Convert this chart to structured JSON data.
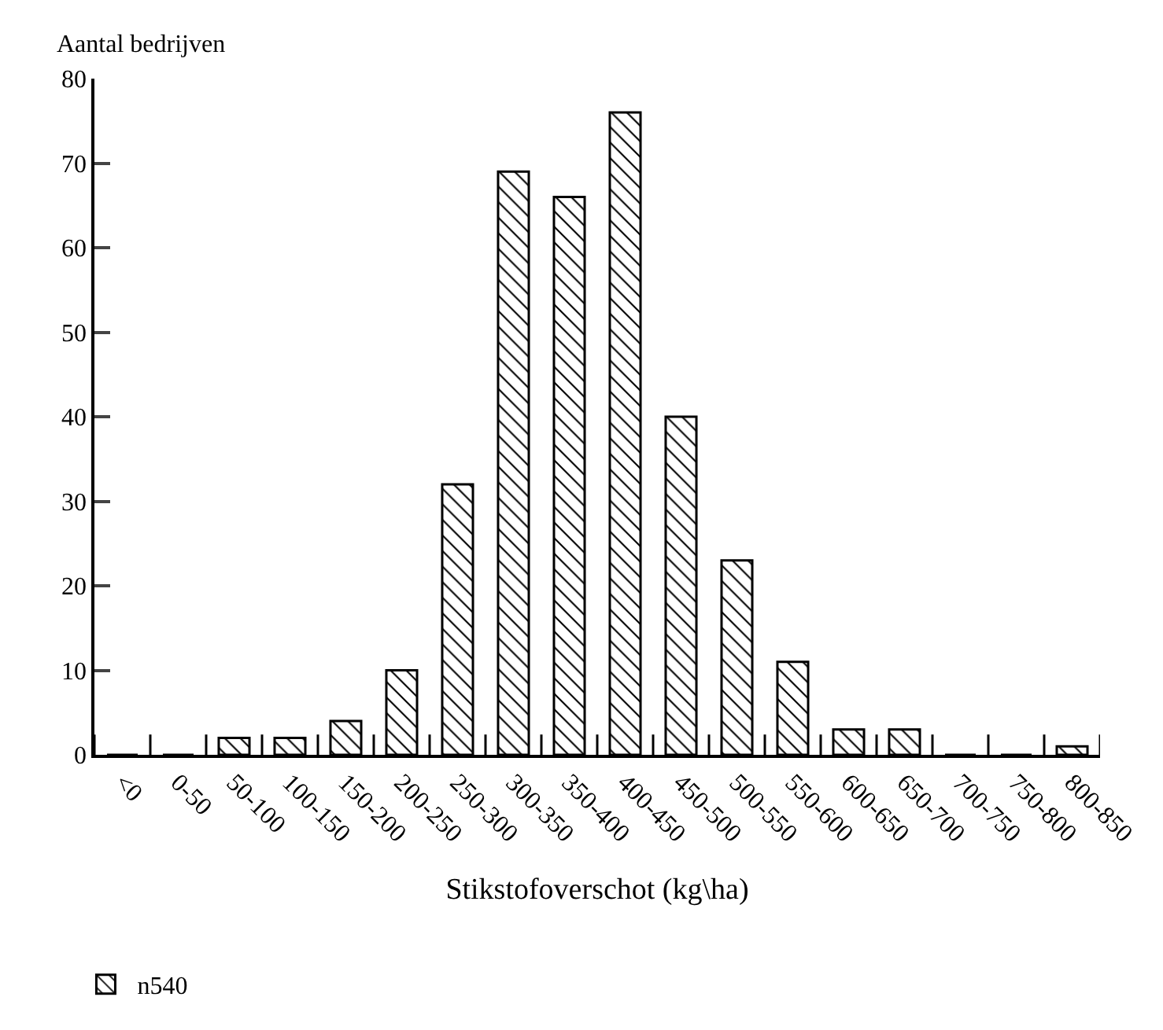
{
  "chart_data": {
    "type": "bar",
    "xlabel": "Stikstofoverschot (kg\\ha)",
    "ylabel": "Aantal bedrijven",
    "categories": [
      "<0",
      "0-50",
      "50-100",
      "100-150",
      "150-200",
      "200-250",
      "250-300",
      "300-350",
      "350-400",
      "400-450",
      "450-500",
      "500-550",
      "550-600",
      "600-650",
      "650-700",
      "700-750",
      "750-800",
      "800-850"
    ],
    "series": [
      {
        "name": "n540",
        "color": "#000000",
        "values": [
          0,
          0,
          2,
          2,
          4,
          10,
          32,
          69,
          66,
          76,
          40,
          23,
          11,
          3,
          3,
          0,
          0,
          1
        ]
      }
    ],
    "ylim": [
      0,
      80
    ],
    "yticks": [
      0,
      10,
      20,
      30,
      40,
      50,
      60,
      70,
      80
    ],
    "legend": "bottom left"
  }
}
